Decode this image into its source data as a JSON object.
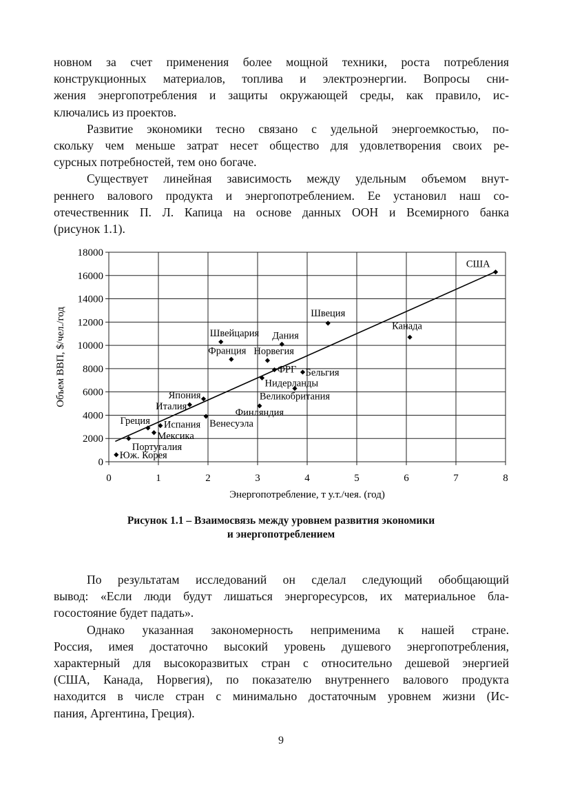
{
  "paragraphs_top": [
    {
      "indent": false,
      "lines": [
        "новном за счет применения более мощной техники, роста потребления",
        "конструкционных материалов, топлива и электроэнергии. Вопросы сни-",
        "жения энергопотребления и защиты окружающей среды, как правило, ис-",
        "ключались из проектов."
      ]
    },
    {
      "indent": true,
      "lines": [
        "Развитие экономики тесно связано с удельной энергоемкостью, по-",
        "скольку чем меньше затрат несет общество для удовлетворения своих ре-",
        "сурсных потребностей, тем оно богаче."
      ]
    },
    {
      "indent": true,
      "lines": [
        "Существует линейная зависимость между удельным объемом внут-",
        "реннего валового продукта и энергопотреблением. Ее установил наш со-",
        "отечественник П. Л. Капица на основе данных ООН и Всемирного банка",
        "(рисунок 1.1)."
      ]
    }
  ],
  "chart_data": {
    "type": "scatter",
    "xlabel": "Энергопотребление, т у.т./чея. (год)",
    "ylabel": "Объем ВВП, $/чел./год",
    "xlim": [
      0,
      8
    ],
    "ylim": [
      0,
      18000
    ],
    "xticks": [
      0,
      1,
      2,
      3,
      4,
      5,
      6,
      7,
      8
    ],
    "yticks": [
      0,
      2000,
      4000,
      6000,
      8000,
      10000,
      12000,
      14000,
      16000,
      18000
    ],
    "grid": true,
    "points": [
      {
        "label": "США",
        "x": 7.8,
        "y": 16300
      },
      {
        "label": "Швеция",
        "x": 4.42,
        "y": 11900
      },
      {
        "label": "Канада",
        "x": 6.07,
        "y": 10700
      },
      {
        "label": "Швейцария",
        "x": 2.26,
        "y": 10300
      },
      {
        "label": "Дания",
        "x": 3.49,
        "y": 10100
      },
      {
        "label": "Франция",
        "x": 2.47,
        "y": 8800
      },
      {
        "label": "Норвегия",
        "x": 3.2,
        "y": 8700
      },
      {
        "label": "ФРГ",
        "x": 3.34,
        "y": 7900
      },
      {
        "label": "Бельгия",
        "x": 3.91,
        "y": 7700
      },
      {
        "label": "Нидерланды",
        "x": 3.09,
        "y": 7200
      },
      {
        "label": "Великобритания",
        "x": 3.75,
        "y": 6300
      },
      {
        "label": "Япония",
        "x": 1.91,
        "y": 5400
      },
      {
        "label": "Италия",
        "x": 1.63,
        "y": 4900
      },
      {
        "label": "Финляндия",
        "x": 3.04,
        "y": 4800
      },
      {
        "label": "Венесуэла",
        "x": 1.96,
        "y": 3900
      },
      {
        "label": "Греция",
        "x": 0.79,
        "y": 2900
      },
      {
        "label": "Испания",
        "x": 1.04,
        "y": 3100
      },
      {
        "label": "Мексика",
        "x": 0.91,
        "y": 2500
      },
      {
        "label": "Португалия",
        "x": 0.4,
        "y": 2000
      },
      {
        "label": "Юж. Корея",
        "x": 0.15,
        "y": 600
      }
    ],
    "trendline": {
      "x": [
        0.13,
        7.8
      ],
      "y": [
        1750,
        16330
      ]
    },
    "marker": "diamond",
    "color": "#000000"
  },
  "caption": {
    "line1": "Рисунок 1.1 – Взаимосвязь между уровнем развития экономики",
    "line2": "и энергопотреблением"
  },
  "paragraphs_bottom": [
    {
      "indent": true,
      "lines": [
        "По результатам исследований он сделал следующий обобщающий",
        "вывод: «Если люди будут лишаться энергоресурсов, их материальное бла-",
        "госостояние будет падать»."
      ]
    },
    {
      "indent": true,
      "lines": [
        "Однако указанная закономерность неприменима к нашей стране.",
        "Россия, имея достаточно высокий уровень душевого энергопотребления,",
        "характерный для высокоразвитых стран с относительно дешевой энергией",
        "(США, Канада, Норвегия), по показателю внутреннего валового продукта",
        "находится в числе стран с минимально достаточным уровнем жизни (Ис-",
        "пания, Аргентина, Греция)."
      ]
    }
  ],
  "page_number": "9"
}
